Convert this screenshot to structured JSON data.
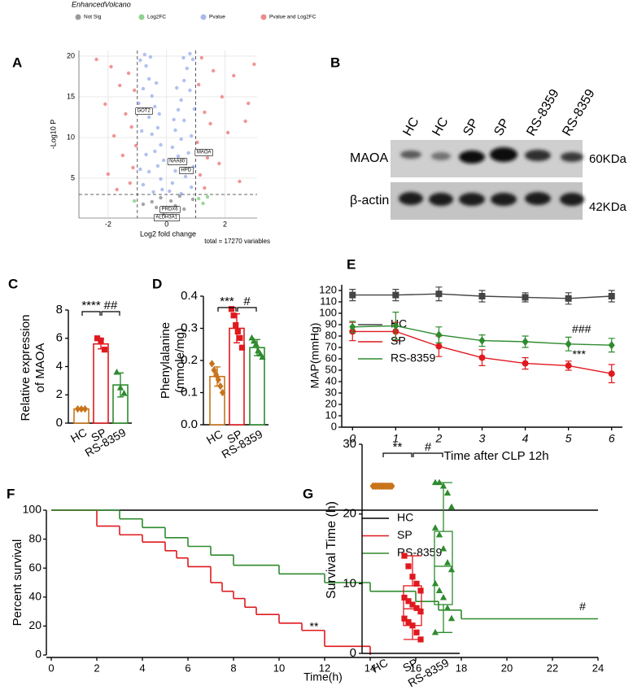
{
  "chart_data": [
    {
      "panel": "A",
      "type": "scatter",
      "title": "EnhancedVolcano",
      "x_label": "Log2 fold change",
      "y_label": "-Log10 P",
      "caption": "total = 17270 variables",
      "xlim": [
        -3,
        3.1
      ],
      "ylim": [
        0.1,
        20.7
      ],
      "xticks": [
        -2,
        0,
        2
      ],
      "yticks": [
        5,
        10,
        15,
        20
      ],
      "grid": true,
      "legend": "top",
      "fc_cutoffs": [
        -1,
        1
      ],
      "p_cutoff": 3,
      "series": [
        {
          "name": "Not Sig",
          "color": "#9a9a9a",
          "x": [
            -0.5,
            0.3,
            -0.2,
            0.6,
            0.0,
            -0.8,
            0.9,
            0.15,
            -0.35,
            0.45,
            -0.1,
            0.2
          ],
          "values": [
            2.1,
            1.6,
            2.6,
            1.2,
            0.9,
            1.8,
            2.4,
            2.2,
            1.4,
            2.8,
            0.5,
            0.4
          ]
        },
        {
          "name": "Log2FC",
          "color": "#8fd18f",
          "x": [
            1.1,
            1.25,
            -1.1,
            1.4
          ],
          "values": [
            2.5,
            1.9,
            2.2,
            2.7
          ]
        },
        {
          "name": "Pvalue",
          "color": "#a9b9ef",
          "x": [
            -0.9,
            -0.7,
            -0.6,
            -0.8,
            -0.5,
            -0.4,
            -0.6,
            -0.3,
            -0.5,
            -0.2,
            -0.4,
            -0.1,
            -0.3,
            -0.6,
            -0.2,
            -0.8,
            -0.15,
            -0.45,
            -0.95,
            -0.85,
            -0.7,
            -0.9,
            -0.75,
            -0.55,
            0.9,
            0.7,
            0.6,
            0.8,
            0.5,
            0.4,
            0.6,
            0.3,
            0.5,
            0.2,
            0.4,
            0.1,
            0.3,
            0.65,
            0.2,
            0.85,
            0.1,
            0.5,
            0.95,
            0.85,
            0.75,
            0.92,
            0.8,
            0.58,
            -0.35,
            0.35,
            -0.25,
            0.25
          ],
          "values": [
            19.5,
            18.8,
            17.2,
            16,
            15.1,
            13.8,
            12.5,
            11.2,
            10.4,
            9.1,
            8.3,
            7.2,
            6.5,
            5.8,
            4.9,
            4.2,
            3.6,
            3.3,
            14.2,
            10.8,
            7.9,
            6.1,
            20.2,
            19.9,
            19.6,
            18.5,
            17,
            15.8,
            14.6,
            13.4,
            12.1,
            10.9,
            9.8,
            8.8,
            7.7,
            6.8,
            5.9,
            5.2,
            4.4,
            3.9,
            3.4,
            3.1,
            13.5,
            10.2,
            8.1,
            6.4,
            20.3,
            19.8,
            16.7,
            16.1,
            12.9,
            12.2
          ]
        },
        {
          "name": "Pvalue and Log2FC",
          "color": "#ef8a8a",
          "x": [
            -2.4,
            -1.9,
            -1.3,
            -1.6,
            -1.1,
            -2.1,
            -1.4,
            -1.2,
            -1.8,
            -1.05,
            -1.5,
            -1.15,
            -2.0,
            -1.25,
            -1.7,
            1.2,
            1.6,
            2.3,
            1.1,
            1.9,
            2.8,
            1.3,
            1.5,
            2.1,
            1.05,
            1.4,
            1.8,
            1.15,
            2.5,
            1.3,
            3.0,
            2.7
          ],
          "values": [
            19.6,
            18.7,
            17.9,
            16.4,
            15.8,
            14.1,
            12.9,
            11.3,
            10.2,
            9.0,
            7.8,
            6.3,
            5.5,
            4.4,
            3.6,
            19.8,
            18.2,
            17.6,
            16.5,
            15.0,
            14.2,
            13.1,
            11.7,
            10.6,
            9.4,
            7.5,
            6.8,
            5.4,
            4.6,
            3.8,
            19.0,
            12.0
          ]
        }
      ],
      "genes": [
        {
          "text": "GOT2",
          "x": -0.78,
          "y": 13.3
        },
        {
          "text": "NAA80",
          "x": 0.36,
          "y": 7.1
        },
        {
          "text": "MAOA",
          "x": 1.28,
          "y": 8.2
        },
        {
          "text": "HPD",
          "x": 0.67,
          "y": 6.0
        },
        {
          "text": "PRDX6",
          "x": 0.11,
          "y": 1.2
        },
        {
          "text": "ALDH3A1",
          "x": 0.0,
          "y": 0.2
        }
      ]
    },
    {
      "panel": "C",
      "type": "bar",
      "y_label": [
        "Relative expression",
        "of MAOA"
      ],
      "categories": [
        "HC",
        "SP",
        "RS-8359"
      ],
      "colors": [
        "#c8741a",
        "#e0191e",
        "#2e8b2e"
      ],
      "markers": [
        "diamond",
        "square",
        "triangle"
      ],
      "values": [
        1,
        5.6,
        2.7
      ],
      "errors": [
        0,
        0.35,
        0.85
      ],
      "points": [
        [
          1,
          1,
          1
        ],
        [
          6.0,
          5.85,
          5.2
        ],
        [
          3.6,
          2.5,
          2.1
        ]
      ],
      "ylim": [
        0,
        8
      ],
      "yticks": [
        0,
        2,
        4,
        6,
        8
      ],
      "significance": [
        "****",
        "##"
      ]
    },
    {
      "panel": "D",
      "type": "bar",
      "y_label": [
        "Phenylalanine",
        "(mmole/mg)"
      ],
      "categories": [
        "HC",
        "SP",
        "RS-8359"
      ],
      "colors": [
        "#c8741a",
        "#e0191e",
        "#2e8b2e"
      ],
      "markers": [
        "diamond",
        "square",
        "triangle"
      ],
      "values": [
        0.15,
        0.3,
        0.24
      ],
      "errors": [
        0.03,
        0.045,
        0.025
      ],
      "points": [
        [
          0.19,
          0.17,
          0.155,
          0.14,
          0.12,
          0.1
        ],
        [
          0.36,
          0.34,
          0.31,
          0.29,
          0.27,
          0.24
        ],
        [
          0.27,
          0.26,
          0.25,
          0.23,
          0.22,
          0.21
        ]
      ],
      "ylim": [
        0,
        0.4
      ],
      "yticks": [
        {
          "value": 0,
          "label": "0.0"
        },
        0.1,
        0.2,
        0.3,
        0.4
      ],
      "significance": [
        "***",
        "#"
      ]
    },
    {
      "panel": "E",
      "type": "line",
      "x_label": "Time after CLP 12h",
      "y_label": "MAP(mmHg)",
      "legend": "left",
      "x": [
        0,
        1,
        2,
        3,
        4,
        5,
        6
      ],
      "xlim": [
        -0.25,
        6.25
      ],
      "xticks": [
        0,
        1,
        2,
        3,
        4,
        5,
        6
      ],
      "ylim": [
        0,
        125
      ],
      "yticks": [
        0,
        10,
        20,
        30,
        40,
        50,
        60,
        70,
        80,
        90,
        100,
        110,
        120
      ],
      "series": [
        {
          "name": "HC",
          "color": "#444444",
          "marker": "square",
          "values": [
            116,
            116,
            117,
            115,
            114,
            113,
            115
          ],
          "errors": [
            5,
            5,
            6,
            5,
            4,
            5,
            5
          ]
        },
        {
          "name": "SP",
          "color": "#e0191e",
          "marker": "circle",
          "values": [
            84,
            84,
            71,
            61,
            56,
            54,
            47
          ],
          "errors": [
            8,
            8,
            9,
            7,
            5,
            4,
            8
          ],
          "annotation": "***"
        },
        {
          "name": "RS-8359",
          "color": "#2e8b2e",
          "marker": "diamond",
          "values": [
            88,
            89,
            81,
            76,
            75,
            73,
            72
          ],
          "errors": [
            5,
            12,
            7,
            5,
            5,
            6,
            6
          ],
          "annotation": "###"
        }
      ]
    },
    {
      "panel": "F",
      "type": "step",
      "x_label": "Time(h)",
      "y_label": "Percent survival",
      "legend": "right",
      "xlim": [
        0,
        24
      ],
      "ylim": [
        0,
        100
      ],
      "xticks": [
        0,
        2,
        4,
        6,
        8,
        10,
        12,
        14,
        16,
        18,
        20,
        22,
        24
      ],
      "yticks": [
        0,
        20,
        40,
        60,
        80,
        100
      ],
      "series": [
        {
          "name": "HC",
          "color": "#000000",
          "x": [
            0,
            24
          ],
          "values": [
            100,
            100
          ]
        },
        {
          "name": "SP",
          "color": "#e0191e",
          "x": [
            0,
            2,
            3,
            4,
            5,
            5.5,
            6,
            7,
            7.5,
            8,
            8.5,
            9,
            10,
            11,
            12,
            14
          ],
          "values": [
            100,
            89,
            83,
            78,
            72,
            67,
            61,
            50,
            44,
            39,
            33,
            28,
            22,
            17,
            6,
            0
          ],
          "annotation": "**"
        },
        {
          "name": "RS-8359",
          "color": "#2e8b2e",
          "x": [
            0,
            3,
            4,
            5,
            6,
            7,
            8,
            10,
            12,
            14,
            16,
            17,
            18,
            24
          ],
          "values": [
            100,
            94,
            88,
            81,
            75,
            69,
            62,
            56,
            50,
            44,
            37,
            31,
            25,
            25
          ],
          "annotation": "#"
        }
      ]
    },
    {
      "panel": "G",
      "type": "box",
      "y_label": "Survival Time (h)",
      "categories": [
        "HC",
        "SP",
        "RS-8359"
      ],
      "colors": [
        "#c8741a",
        "#e0191e",
        "#2e8b2e"
      ],
      "markers": [
        "diamond",
        "square",
        "triangle"
      ],
      "points": [
        [
          24,
          24,
          24,
          24,
          24,
          24,
          24,
          24,
          24,
          24,
          24,
          24,
          24,
          24,
          24
        ],
        [
          14,
          12.5,
          11,
          10,
          9,
          8,
          7.5,
          7,
          6.5,
          6,
          5,
          4.5,
          4,
          3,
          2
        ],
        [
          24.5,
          24.5,
          24,
          23,
          21,
          18,
          17,
          15,
          13,
          12,
          10,
          9,
          8,
          6.5,
          5,
          3
        ]
      ],
      "box": [
        {
          "min": 24,
          "q1": 24,
          "median": 24,
          "q3": 24,
          "max": 24
        },
        {
          "min": 2,
          "q1": 4.0,
          "median": 6.4,
          "q3": 9.7,
          "max": 14
        },
        {
          "min": 3,
          "q1": 7,
          "median": 12.5,
          "q3": 17.5,
          "max": 24.5
        }
      ],
      "ylim": [
        0,
        30
      ],
      "yticks": [
        0,
        10,
        20,
        30
      ],
      "significance": [
        "**",
        "#"
      ]
    }
  ],
  "blot": {
    "panel": "B",
    "lanes": [
      "HC",
      "HC",
      "SP",
      "SP",
      "RS-8359",
      "RS-8359"
    ],
    "proteins": [
      "MAOA",
      "β-actin"
    ],
    "sizes": [
      "60KDa",
      "42KDa"
    ]
  }
}
